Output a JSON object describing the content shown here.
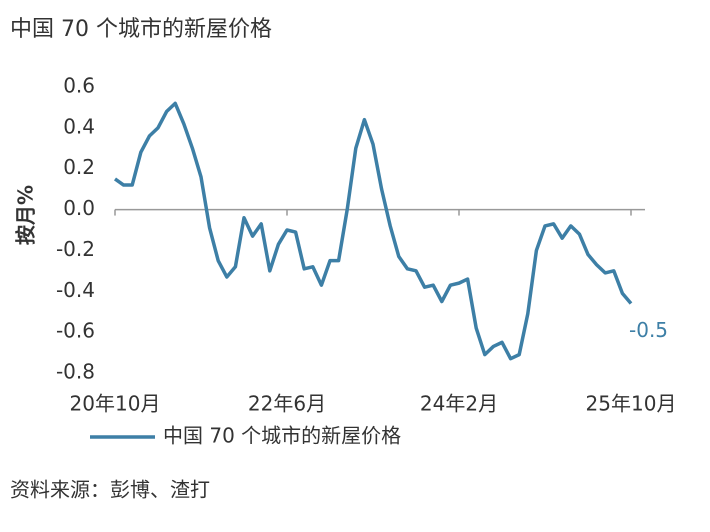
{
  "chart_data": {
    "type": "line",
    "title": "中国 70 个城市的新屋价格",
    "y_label": "按月%",
    "source": "资料来源：彭博、渣打",
    "categories": [
      "20年10月",
      null,
      null,
      null,
      null,
      null,
      null,
      null,
      null,
      null,
      null,
      null,
      null,
      null,
      null,
      null,
      null,
      null,
      null,
      null,
      "22年6月",
      null,
      null,
      null,
      null,
      null,
      null,
      null,
      null,
      null,
      null,
      null,
      null,
      null,
      null,
      null,
      null,
      null,
      null,
      null,
      "24年2月",
      null,
      null,
      null,
      null,
      null,
      null,
      null,
      null,
      null,
      null,
      null,
      null,
      null,
      null,
      null,
      null,
      null,
      null,
      null,
      "25年10月"
    ],
    "series": [
      {
        "name": "中国 70 个城市的新屋价格",
        "color": "#3d7fa6",
        "values": [
          0.15,
          0.12,
          0.12,
          0.28,
          0.36,
          0.4,
          0.48,
          0.52,
          0.42,
          0.3,
          0.16,
          -0.09,
          -0.25,
          -0.33,
          -0.28,
          -0.04,
          -0.13,
          -0.07,
          -0.3,
          -0.17,
          -0.1,
          -0.11,
          -0.29,
          -0.28,
          -0.37,
          -0.25,
          -0.25,
          0.0,
          0.3,
          0.44,
          0.32,
          0.1,
          -0.08,
          -0.23,
          -0.29,
          -0.3,
          -0.38,
          -0.37,
          -0.45,
          -0.37,
          -0.36,
          -0.34,
          -0.58,
          -0.71,
          -0.67,
          -0.65,
          -0.73,
          -0.71,
          -0.51,
          -0.2,
          -0.08,
          -0.07,
          -0.14,
          -0.08,
          -0.12,
          -0.22,
          -0.27,
          -0.31,
          -0.3,
          -0.41,
          -0.46
        ],
        "value_labels": [
          null,
          null,
          null,
          null,
          null,
          null,
          null,
          null,
          null,
          null,
          null,
          null,
          null,
          null,
          null,
          null,
          null,
          null,
          null,
          null,
          null,
          null,
          null,
          null,
          null,
          null,
          null,
          null,
          null,
          null,
          null,
          null,
          null,
          null,
          null,
          null,
          null,
          null,
          null,
          null,
          null,
          null,
          null,
          null,
          null,
          null,
          null,
          null,
          null,
          null,
          null,
          null,
          null,
          null,
          null,
          null,
          null,
          null,
          null,
          null,
          "-0.5"
        ]
      }
    ],
    "ylim": [
      -0.8,
      0.6
    ],
    "yticks": [
      0.6,
      0.4,
      0.2,
      {
        "value": 0,
        "label": "0.0"
      },
      -0.2,
      -0.4,
      -0.6,
      -0.8
    ],
    "grid": false
  }
}
